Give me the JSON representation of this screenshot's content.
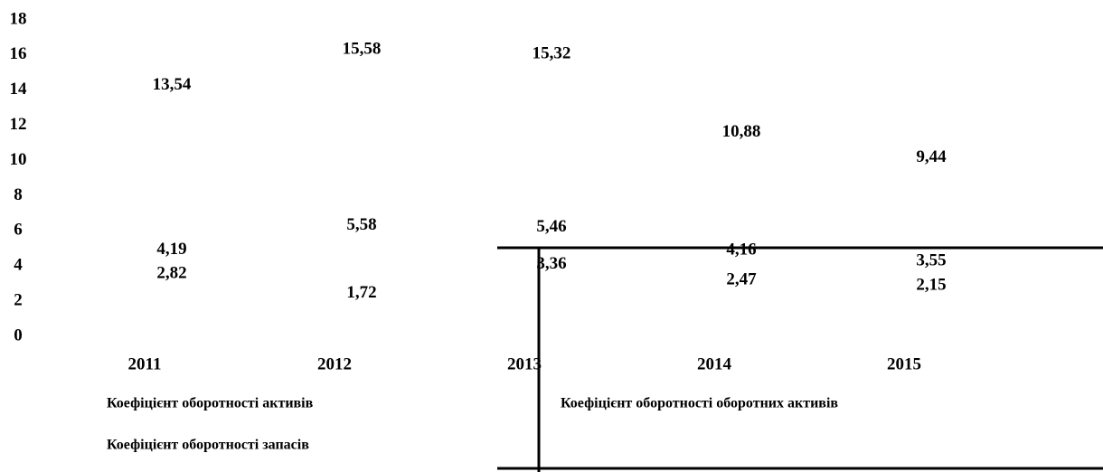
{
  "chart_data": {
    "type": "line",
    "categories": [
      "2011",
      "2012",
      "2013",
      "2014",
      "2015"
    ],
    "series": [
      {
        "name": "Коефіцієнт оборотності активів",
        "color": "#ffffff",
        "values": [
          2.82,
          1.72,
          3.36,
          2.47,
          2.15
        ],
        "value_labels": [
          "2,82",
          "1,72",
          "3,36",
          "2,47",
          "2,15"
        ]
      },
      {
        "name": "Коефіцієнт оборотності оборотних активів",
        "color": "#ffffff",
        "values": [
          4.19,
          5.58,
          5.46,
          4.16,
          3.55
        ],
        "value_labels": [
          "4,19",
          "5,58",
          "5,46",
          "4,16",
          "3,55"
        ]
      },
      {
        "name": "Коефіцієнт оборотності запасів",
        "color": "#ffffff",
        "values": [
          13.54,
          15.58,
          15.32,
          10.88,
          9.44
        ],
        "value_labels": [
          "13,54",
          "15,58",
          "15,32",
          "10,88",
          "9,44"
        ]
      }
    ],
    "ylim": [
      0,
      18
    ],
    "yticks": [
      0,
      2,
      4,
      6,
      8,
      10,
      12,
      14,
      16,
      18
    ],
    "grid": false
  }
}
